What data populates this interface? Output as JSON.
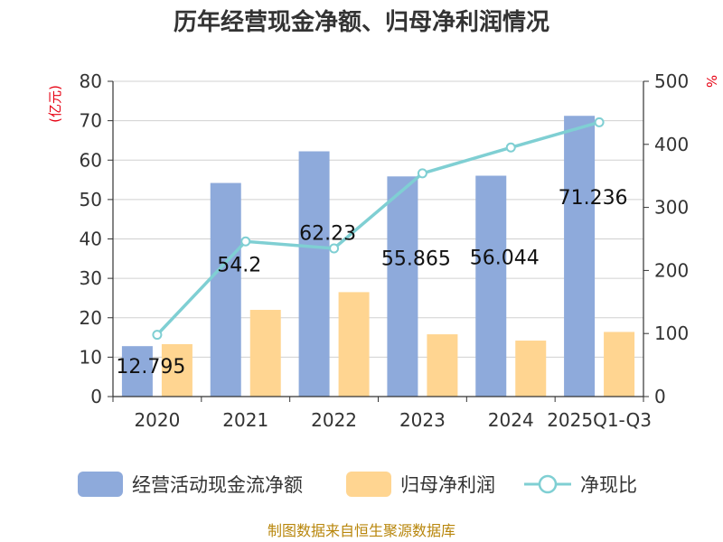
{
  "chart_data": {
    "type": "bar",
    "title": "历年经营现金净额、归母净利润情况",
    "categories": [
      "2020",
      "2021",
      "2022",
      "2023",
      "2024",
      "2025Q1-Q3"
    ],
    "y_left": {
      "unit": "(亿元)",
      "min": 0,
      "max": 80,
      "ticks": [
        0,
        10,
        20,
        30,
        40,
        50,
        60,
        70,
        80
      ]
    },
    "y_right": {
      "unit": "%",
      "min": 0,
      "max": 500,
      "ticks": [
        0,
        100,
        200,
        300,
        400,
        500
      ]
    },
    "grid": true,
    "legend_position": "bottom",
    "series": [
      {
        "name": "经营活动现金流净额",
        "type": "bar",
        "axis": "left",
        "color": "#8eaadb",
        "values": [
          12.795,
          54.2,
          62.23,
          55.865,
          56.044,
          71.236
        ],
        "labels": [
          "12.795",
          "54.2",
          "62.23",
          "55.865",
          "56.044",
          "71.236"
        ]
      },
      {
        "name": "归母净利润",
        "type": "bar",
        "axis": "left",
        "color": "#ffd591",
        "values": [
          13.3,
          22.0,
          26.5,
          15.8,
          14.2,
          16.4
        ]
      },
      {
        "name": "净现比",
        "type": "line",
        "axis": "right",
        "color": "#7fcfd3",
        "values": [
          98,
          246,
          235,
          354,
          395,
          435
        ]
      }
    ]
  },
  "footer": "制图数据来自恒生聚源数据库"
}
